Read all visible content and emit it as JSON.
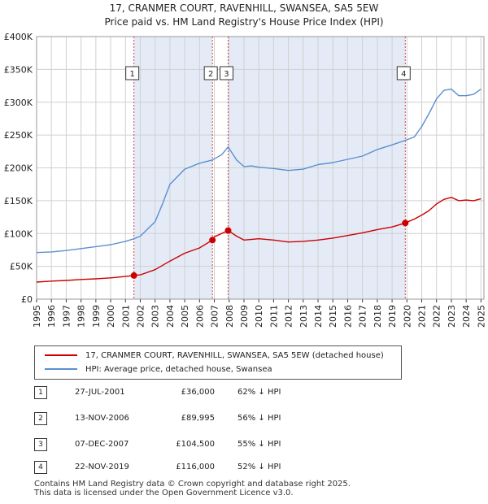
{
  "title": {
    "line1": "17, CRANMER COURT, RAVENHILL, SWANSEA, SA5 5EW",
    "line2": "Price paid vs. HM Land Registry's House Price Index (HPI)"
  },
  "colors": {
    "property": "#cc0000",
    "hpi": "#5b8fd0",
    "shade": "#dde6f5",
    "grid": "#d0d0d0",
    "axis": "#333333"
  },
  "chart_data": {
    "type": "line",
    "title": "17, CRANMER COURT, RAVENHILL, SWANSEA, SA5 5EW",
    "subtitle": "Price paid vs. HM Land Registry's House Price Index (HPI)",
    "xlabel": "",
    "ylabel": "",
    "xlim": [
      1995,
      2025.2
    ],
    "ylim": [
      0,
      400000
    ],
    "x_ticks": [
      "1995",
      "1996",
      "1997",
      "1998",
      "1999",
      "2000",
      "2001",
      "2002",
      "2003",
      "2004",
      "2005",
      "2006",
      "2007",
      "2008",
      "2009",
      "2010",
      "2011",
      "2012",
      "2013",
      "2014",
      "2015",
      "2016",
      "2017",
      "2018",
      "2019",
      "2020",
      "2021",
      "2022",
      "2023",
      "2024",
      "2025"
    ],
    "y_ticks": [
      {
        "value": 0,
        "label": "£0"
      },
      {
        "value": 50000,
        "label": "£50K"
      },
      {
        "value": 100000,
        "label": "£100K"
      },
      {
        "value": 150000,
        "label": "£150K"
      },
      {
        "value": 200000,
        "label": "£200K"
      },
      {
        "value": 250000,
        "label": "£250K"
      },
      {
        "value": 300000,
        "label": "£300K"
      },
      {
        "value": 350000,
        "label": "£350K"
      },
      {
        "value": 400000,
        "label": "£400K"
      }
    ],
    "grid": true,
    "series": [
      {
        "name": "17, CRANMER COURT, RAVENHILL, SWANSEA, SA5 5EW (detached house)",
        "color": "#cc0000",
        "x": [
          1995.0,
          1996.0,
          1997.0,
          1998.0,
          1999.0,
          2000.0,
          2001.0,
          2001.57,
          2002.0,
          2003.0,
          2004.0,
          2005.0,
          2006.0,
          2006.87,
          2007.0,
          2007.93,
          2008.5,
          2009.0,
          2010.0,
          2011.0,
          2012.0,
          2013.0,
          2014.0,
          2015.0,
          2016.0,
          2017.0,
          2018.0,
          2019.0,
          2019.89,
          2020.5,
          2021.0,
          2021.5,
          2022.0,
          2022.5,
          2023.0,
          2023.5,
          2024.0,
          2024.5,
          2025.0
        ],
        "y": [
          26000,
          27500,
          28500,
          30000,
          31000,
          32500,
          34500,
          36000,
          37000,
          45000,
          58000,
          70000,
          78000,
          89995,
          95000,
          104500,
          96000,
          90000,
          92000,
          90000,
          87000,
          88000,
          90000,
          93000,
          97000,
          101000,
          106000,
          110000,
          116000,
          122000,
          128000,
          135000,
          145000,
          152000,
          155000,
          150000,
          151000,
          150000,
          153000
        ]
      },
      {
        "name": "HPI: Average price, detached house, Swansea",
        "color": "#5b8fd0",
        "x": [
          1995.0,
          1996.0,
          1997.0,
          1998.0,
          1999.0,
          2000.0,
          2001.0,
          2001.57,
          2002.0,
          2003.0,
          2003.5,
          2004.0,
          2005.0,
          2006.0,
          2006.87,
          2007.5,
          2007.93,
          2008.5,
          2009.0,
          2009.5,
          2010.0,
          2011.0,
          2012.0,
          2013.0,
          2014.0,
          2015.0,
          2016.0,
          2017.0,
          2018.0,
          2019.0,
          2019.89,
          2020.5,
          2021.0,
          2021.5,
          2022.0,
          2022.5,
          2023.0,
          2023.5,
          2024.0,
          2024.5,
          2025.0
        ],
        "y": [
          71000,
          72000,
          74000,
          77000,
          80000,
          83000,
          88000,
          92000,
          96000,
          118000,
          145000,
          175000,
          198000,
          207000,
          212000,
          220000,
          232000,
          212000,
          202000,
          203000,
          201000,
          199000,
          196000,
          198000,
          205000,
          208000,
          213000,
          218000,
          228000,
          235000,
          242000,
          247000,
          263000,
          283000,
          305000,
          318000,
          320000,
          310000,
          310000,
          312000,
          320000
        ]
      }
    ],
    "transactions": [
      {
        "id": "1",
        "x": 2001.57,
        "price": 36000
      },
      {
        "id": "2",
        "x": 2006.87,
        "price": 89995
      },
      {
        "id": "3",
        "x": 2007.93,
        "price": 104500
      },
      {
        "id": "4",
        "x": 2019.89,
        "price": 116000
      }
    ],
    "shaded_ranges": [
      [
        2001.57,
        2006.87
      ],
      [
        2007.93,
        2019.89
      ]
    ]
  },
  "legend": {
    "property_label": "17, CRANMER COURT, RAVENHILL, SWANSEA, SA5 5EW (detached house)",
    "hpi_label": "HPI: Average price, detached house, Swansea"
  },
  "transactions_table": [
    {
      "num": "1",
      "date": "27-JUL-2001",
      "price": "£36,000",
      "hpi": "62% ↓ HPI"
    },
    {
      "num": "2",
      "date": "13-NOV-2006",
      "price": "£89,995",
      "hpi": "56% ↓ HPI"
    },
    {
      "num": "3",
      "date": "07-DEC-2007",
      "price": "£104,500",
      "hpi": "55% ↓ HPI"
    },
    {
      "num": "4",
      "date": "22-NOV-2019",
      "price": "£116,000",
      "hpi": "52% ↓ HPI"
    }
  ],
  "footer": {
    "line1": "Contains HM Land Registry data © Crown copyright and database right 2025.",
    "line2": "This data is licensed under the Open Government Licence v3.0."
  }
}
